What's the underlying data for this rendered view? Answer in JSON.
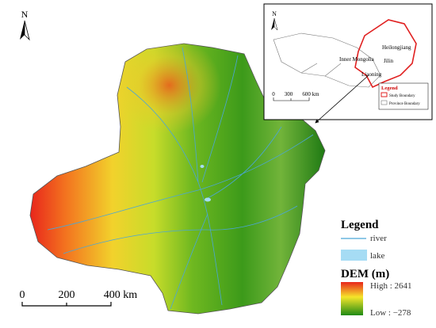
{
  "map": {
    "north_label": "N"
  },
  "inset": {
    "north_label": "N",
    "provinces": [
      "Heilongjiang",
      "Jilin",
      "Inner Mongolia",
      "Liaoning"
    ],
    "legend_title": "Legend",
    "legend_items": [
      "Study Boundary",
      "Province Boundary"
    ],
    "scale_labels": [
      "0",
      "300",
      "600 km"
    ]
  },
  "legend": {
    "title": "Legend",
    "items": [
      "river",
      "lake"
    ],
    "dem_title": "DEM (m)",
    "high_label": "High : 2641",
    "low_label": "Low : −278"
  },
  "scale_bar": {
    "labels": [
      "0",
      "200",
      "400 km"
    ]
  }
}
